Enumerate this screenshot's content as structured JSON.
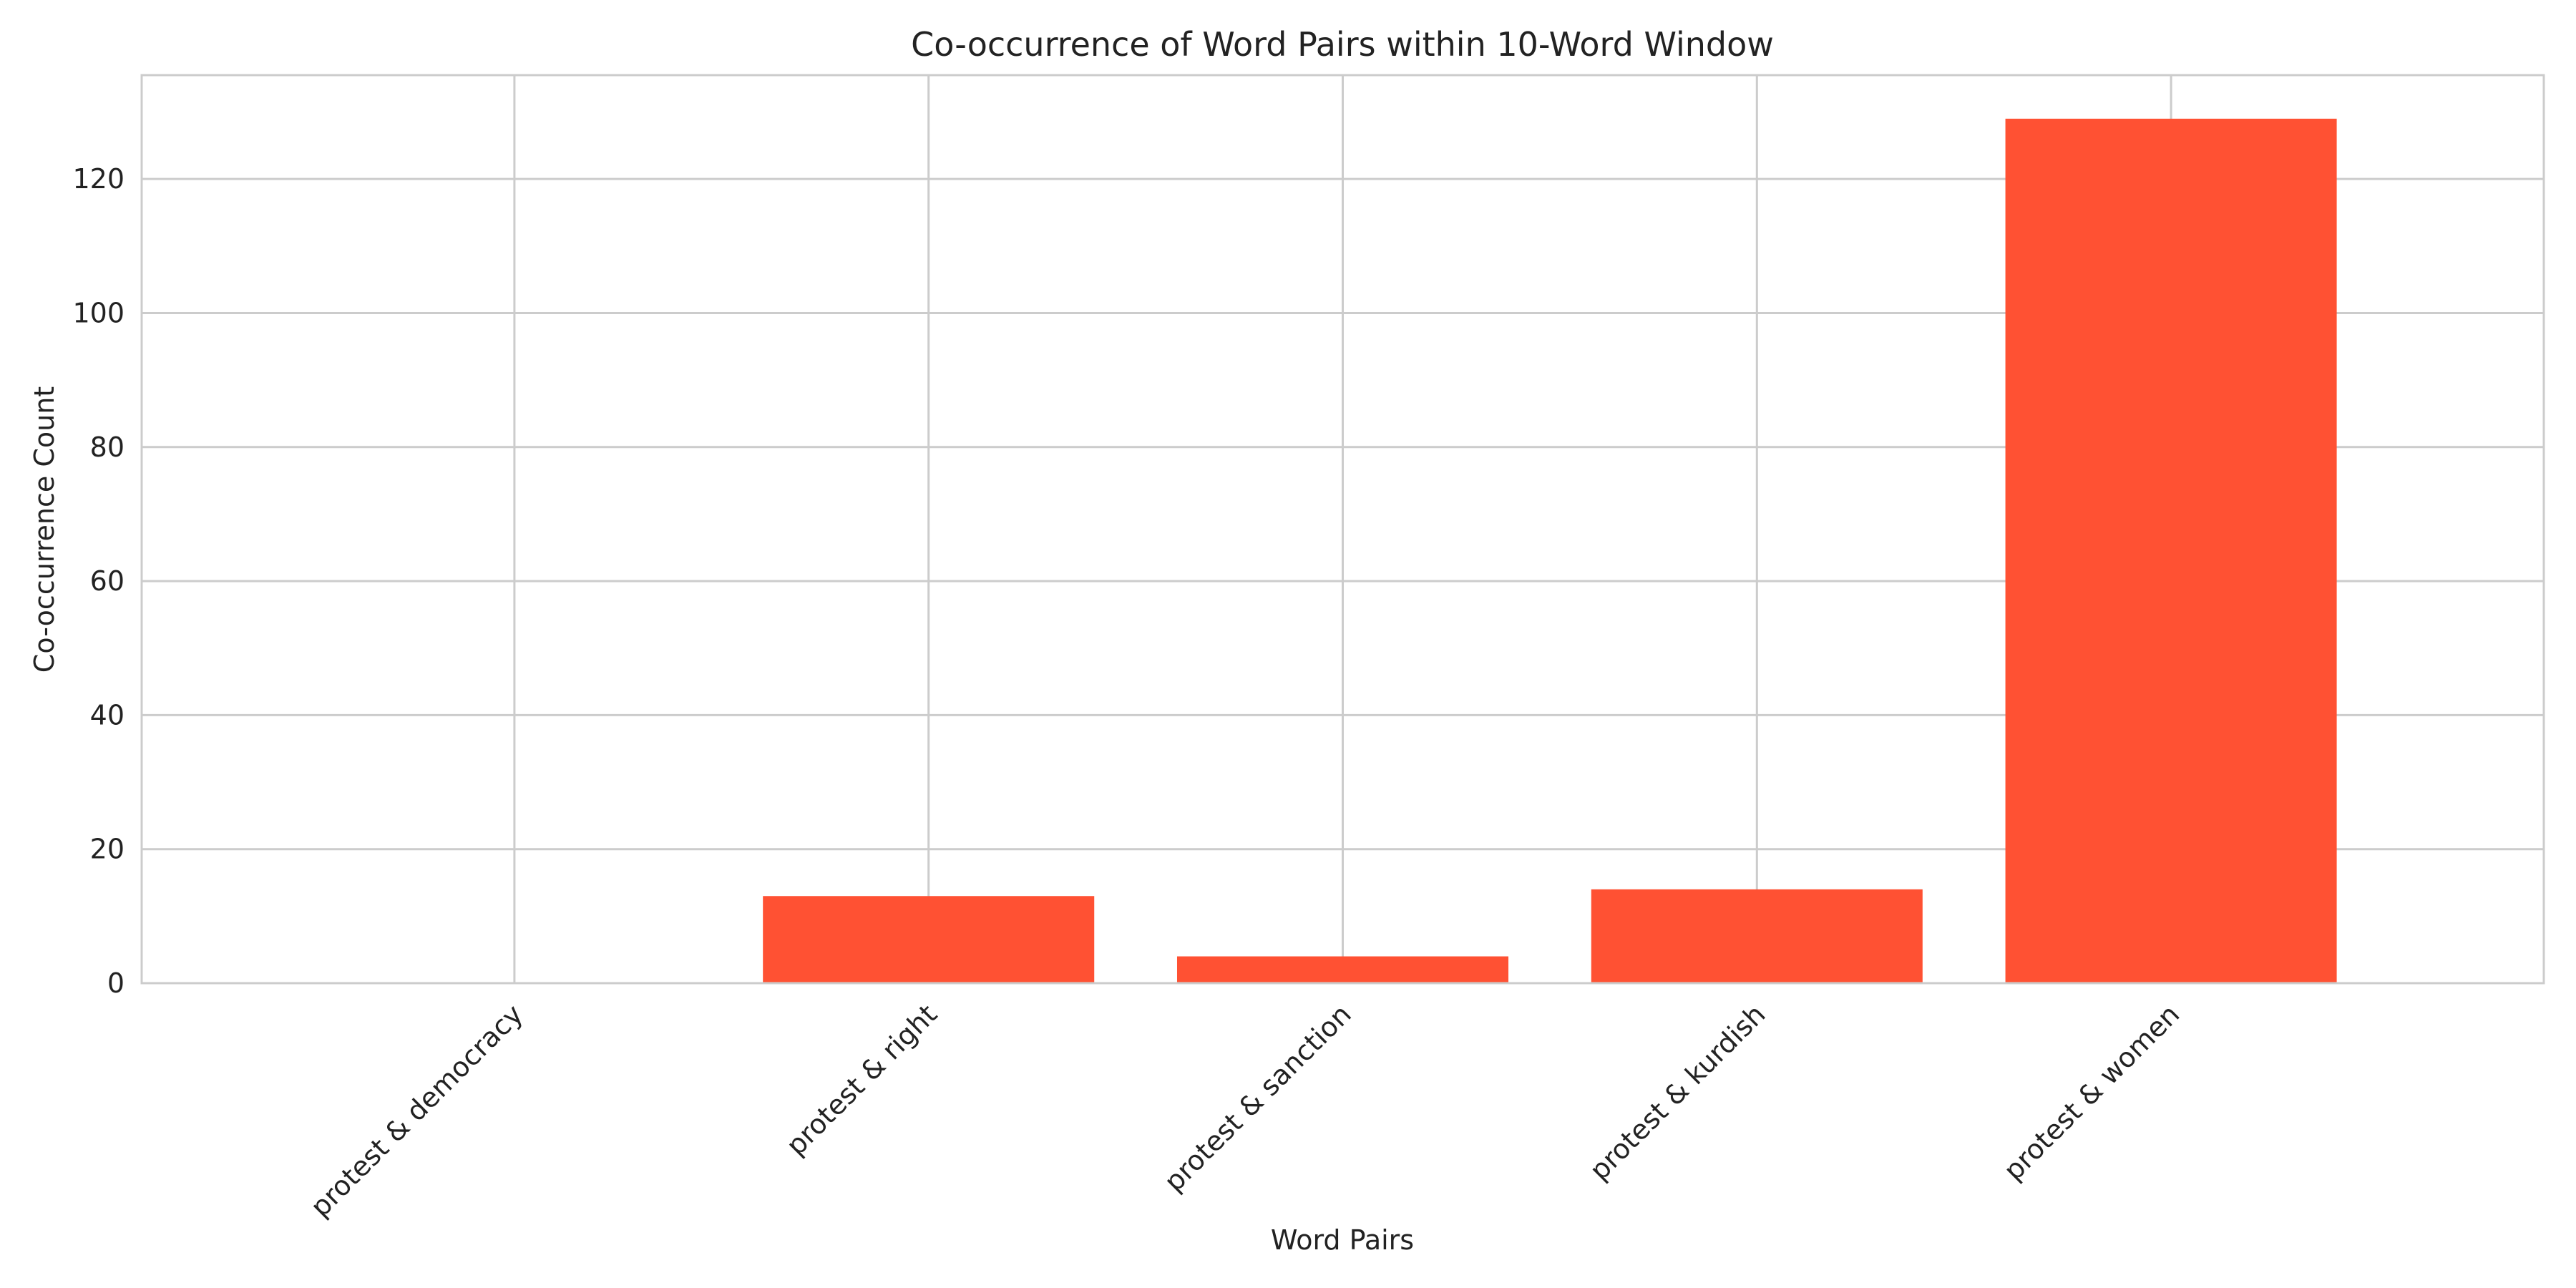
{
  "chart_data": {
    "type": "bar",
    "title": "Co-occurrence of Word Pairs within 10-Word Window",
    "xlabel": "Word Pairs",
    "ylabel": "Co-occurrence Count",
    "categories": [
      "protest & democracy",
      "protest & right",
      "protest & sanction",
      "protest & kurdish",
      "protest & women"
    ],
    "values": [
      0,
      13,
      4,
      14,
      129
    ],
    "ylim": [
      0,
      135.5
    ],
    "yticks": [
      0,
      20,
      40,
      60,
      80,
      100,
      120
    ],
    "grid": true,
    "legend": "none",
    "bar_color": "#ff5133",
    "grid_color": "#cccccc",
    "background": "#ffffff",
    "x_tick_rotation": 45
  }
}
